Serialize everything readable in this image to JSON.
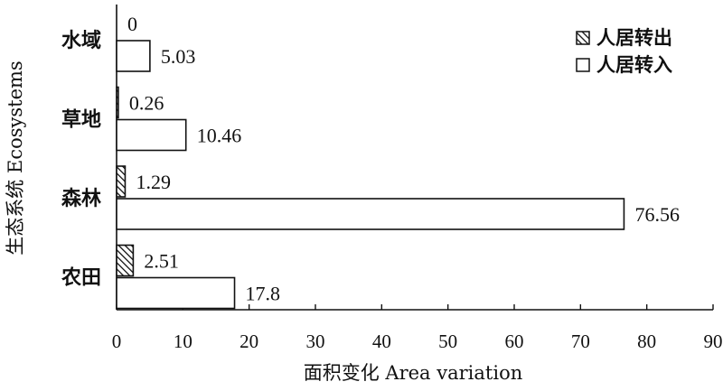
{
  "chart_data": {
    "type": "bar",
    "orientation": "horizontal",
    "title": "",
    "xlabel": "面积变化 Area variation",
    "ylabel": "生态系统 Ecosystems",
    "xlim": [
      0,
      90
    ],
    "xticks": [
      "0",
      "10",
      "20",
      "30",
      "40",
      "50",
      "60",
      "70",
      "80",
      "90"
    ],
    "categories": [
      "水域",
      "草地",
      "森林",
      "农田"
    ],
    "series": [
      {
        "name": "人居转出",
        "pattern": "hatched",
        "values": [
          0,
          0.26,
          1.29,
          2.51
        ],
        "labels": [
          "0",
          "0.26",
          "1.29",
          "2.51"
        ]
      },
      {
        "name": "人居转入",
        "pattern": "hollow",
        "values": [
          5.03,
          10.46,
          76.56,
          17.8
        ],
        "labels": [
          "5.03",
          "10.46",
          "76.56",
          "17.8"
        ]
      }
    ],
    "legend_position": "top-right",
    "grid": false
  }
}
